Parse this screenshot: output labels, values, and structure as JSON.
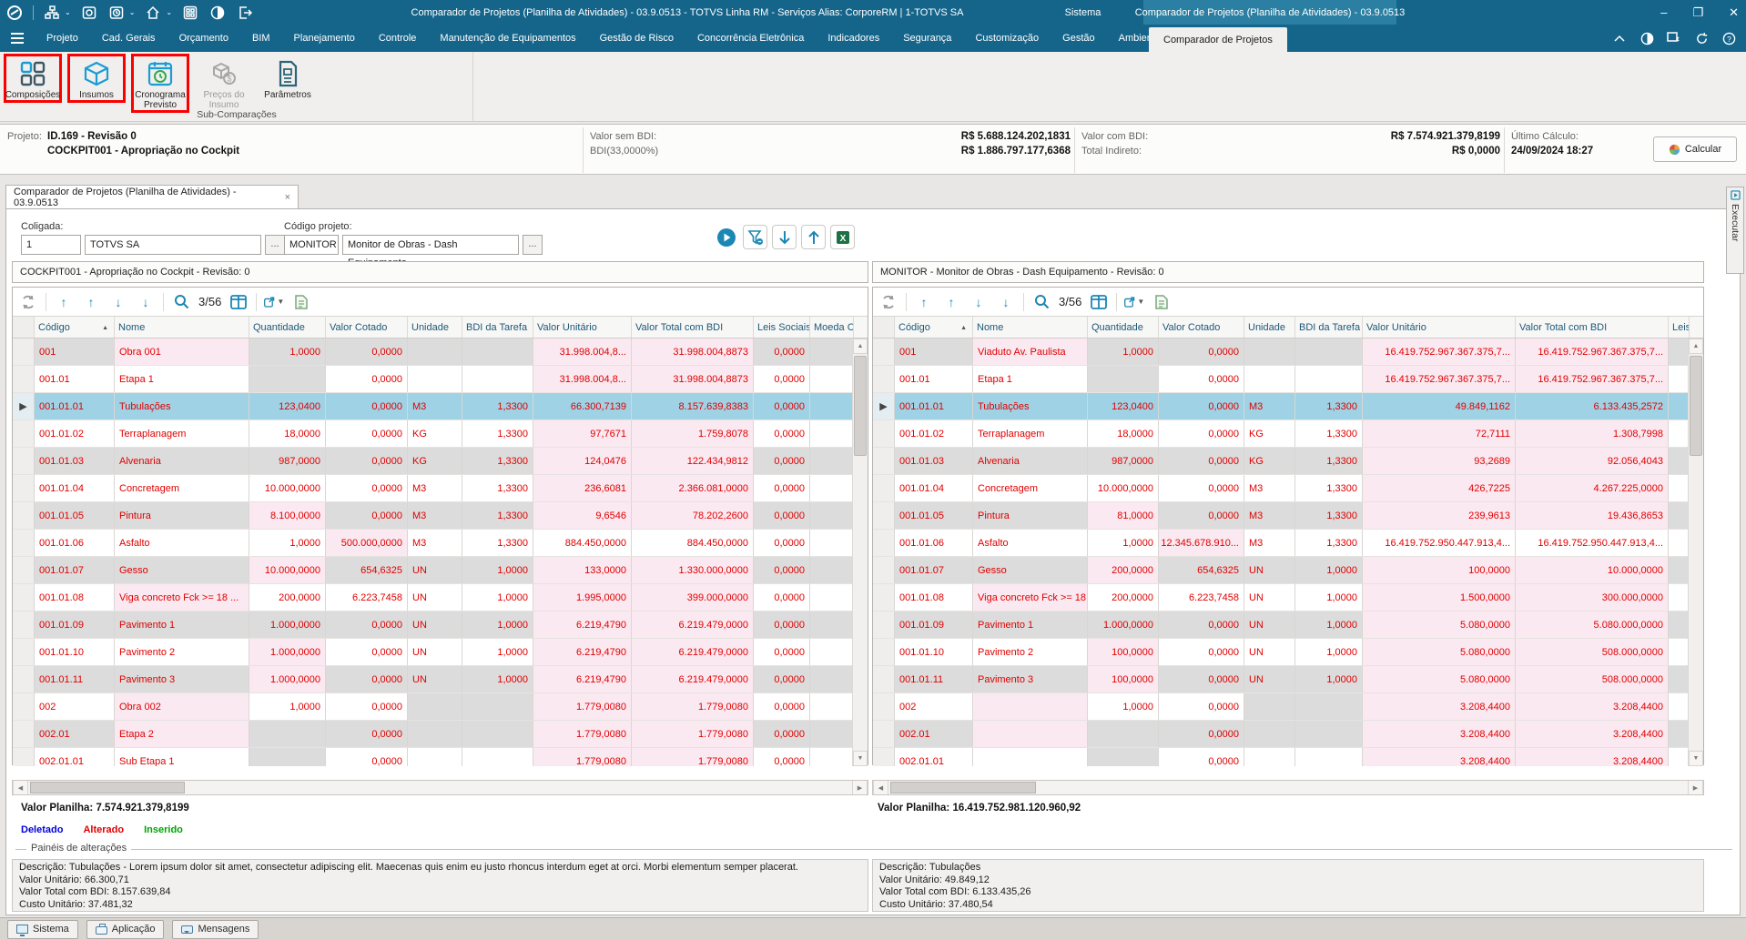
{
  "window": {
    "title": "Comparador de Projetos (Planilha de Atividades) - 03.9.0513 - TOTVS Linha RM - Serviços  Alias: CorporeRM | 1-TOTVS SA",
    "tab_sistema": "Sistema",
    "tab_active": "Comparador de Projetos (Planilha de Atividades) - 03.9.0513",
    "controls": {
      "minimize": "–",
      "maximize": "❐",
      "close": "✕"
    },
    "titlebar_icons": [
      "totvs-logo",
      "workflow-icon",
      "monitor-icon",
      "schedule-icon",
      "home-icon",
      "apps-icon",
      "contrast-icon",
      "exit-icon"
    ]
  },
  "menubar": {
    "items": [
      "Projeto",
      "Cad. Gerais",
      "Orçamento",
      "BIM",
      "Planejamento",
      "Controle",
      "Manutenção de Equipamentos",
      "Gestão de Risco",
      "Concorrência Eletrônica",
      "Indicadores",
      "Segurança",
      "Customização",
      "Gestão",
      "Ambiente"
    ],
    "active_tab": "Comparador de Projetos",
    "right_icons": [
      "collapse-ribbon-icon",
      "contrast-icon",
      "window-switch-icon",
      "refresh-icon",
      "help-icon"
    ]
  },
  "ribbon": {
    "group_label": "Sub-Comparações",
    "buttons": [
      {
        "label": "Composições",
        "icon": "composicoes-icon",
        "enabled": true,
        "highlighted": true
      },
      {
        "label": "Insumos",
        "icon": "insumos-icon",
        "enabled": true,
        "highlighted": true
      },
      {
        "label": "Cronograma Previsto",
        "icon": "cronograma-icon",
        "enabled": true,
        "highlighted": true
      },
      {
        "label": "Preços do Insumo",
        "icon": "precos-insumo-icon",
        "enabled": false,
        "highlighted": false
      },
      {
        "label": "Parâmetros",
        "icon": "parametros-icon",
        "enabled": true,
        "highlighted": false
      }
    ]
  },
  "infobar": {
    "projeto_label": "Projeto:",
    "projeto_line1": "ID.169 - Revisão 0",
    "projeto_line2": "COCKPIT001 - Apropriação no Cockpit",
    "valor_sem_bdi_label": "Valor sem BDI:",
    "valor_sem_bdi": "R$ 5.688.124.202,1831",
    "bdi_label": "BDI(33,0000%)",
    "bdi_valor": "R$ 1.886.797.177,6368",
    "valor_com_bdi_label": "Valor com BDI:",
    "valor_com_bdi": "R$ 7.574.921.379,8199",
    "total_indireto_label": "Total Indireto:",
    "total_indireto": "R$ 0,0000",
    "ultimo_calculo_label": "Último Cálculo:",
    "ultimo_calculo": "24/09/2024 18:27",
    "calcular_label": "Calcular"
  },
  "workspace": {
    "doc_tab": "Comparador de Projetos (Planilha de Atividades) - 03.9.0513",
    "doc_tab_close": "×",
    "coligada_label": "Coligada:",
    "coligada_codigo": "1",
    "coligada_nome": "TOTVS SA",
    "browse_label": "...",
    "codigo_projeto_label": "Código projeto:",
    "projeto_codigo": "MONITOR",
    "projeto_nome": "Monitor de Obras - Dash Equipamento",
    "action_icons": [
      "run-icon",
      "filter-icon",
      "move-down-icon",
      "move-up-icon",
      "excel-export-icon"
    ]
  },
  "grid": {
    "columns": [
      "Código",
      "Nome",
      "Quantidade",
      "Valor Cotado",
      "Unidade",
      "BDI da Tarefa",
      "Valor Unitário",
      "Valor Total com BDI",
      "Leis Sociais",
      "Moeda Cotada"
    ],
    "sorted_column": "Código",
    "toolbar_icons": [
      "refresh-icon",
      "first-row-icon",
      "prev-row-icon",
      "next-row-icon",
      "last-row-icon",
      "search-icon",
      "columns-icon",
      "export-icon",
      "report-icon"
    ],
    "left": {
      "title": "COCKPIT001 - Apropriação no Cockpit - Revisão: 0",
      "pager": "3/56",
      "valor_planilha": "Valor Planilha: 7.574.921.379,8199",
      "rows": [
        {
          "cells": [
            "001",
            "Obra 001",
            "1,0000",
            "0,0000",
            "",
            "",
            "31.998.004,8...",
            "31.998.004,8873",
            "0,0000",
            ""
          ],
          "pink": [
            1,
            6,
            7
          ],
          "gray": [],
          "selected": false
        },
        {
          "cells": [
            "001.01",
            "Etapa 1",
            "",
            "0,0000",
            "",
            "",
            "31.998.004,8...",
            "31.998.004,8873",
            "0,0000",
            ""
          ],
          "pink": [
            6,
            7
          ],
          "gray": [
            2
          ],
          "selected": false
        },
        {
          "cells": [
            "001.01.01",
            "Tubulações",
            "123,0400",
            "0,0000",
            "M3",
            "1,3300",
            "66.300,7139",
            "8.157.639,8383",
            "0,0000",
            ""
          ],
          "pink": [],
          "gray": [],
          "selected": true
        },
        {
          "cells": [
            "001.01.02",
            "Terraplanagem",
            "18,0000",
            "0,0000",
            "KG",
            "1,3300",
            "97,7671",
            "1.759,8078",
            "0,0000",
            ""
          ],
          "pink": [
            6,
            7
          ],
          "gray": [],
          "selected": false
        },
        {
          "cells": [
            "001.01.03",
            "Alvenaria",
            "987,0000",
            "0,0000",
            "KG",
            "1,3300",
            "124,0476",
            "122.434,9812",
            "0,0000",
            ""
          ],
          "pink": [
            6,
            7
          ],
          "gray": [],
          "selected": false
        },
        {
          "cells": [
            "001.01.04",
            "Concretagem",
            "10.000,0000",
            "0,0000",
            "M3",
            "1,3300",
            "236,6081",
            "2.366.081,0000",
            "0,0000",
            ""
          ],
          "pink": [
            6,
            7
          ],
          "gray": [],
          "selected": false
        },
        {
          "cells": [
            "001.01.05",
            "Pintura",
            "8.100,0000",
            "0,0000",
            "M3",
            "1,3300",
            "9,6546",
            "78.202,2600",
            "0,0000",
            ""
          ],
          "pink": [
            2,
            6,
            7
          ],
          "gray": [],
          "selected": false
        },
        {
          "cells": [
            "001.01.06",
            "Asfalto",
            "1,0000",
            "500.000,0000",
            "M3",
            "1,3300",
            "884.450,0000",
            "884.450,0000",
            "0,0000",
            ""
          ],
          "pink": [
            3
          ],
          "gray": [],
          "selected": false
        },
        {
          "cells": [
            "001.01.07",
            "Gesso",
            "10.000,0000",
            "654,6325",
            "UN",
            "1,0000",
            "133,0000",
            "1.330.000,0000",
            "0,0000",
            ""
          ],
          "pink": [
            2,
            6,
            7
          ],
          "gray": [],
          "selected": false
        },
        {
          "cells": [
            "001.01.08",
            "Viga concreto Fck >= 18 ...",
            "200,0000",
            "6.223,7458",
            "UN",
            "1,0000",
            "1.995,0000",
            "399.000,0000",
            "0,0000",
            ""
          ],
          "pink": [
            1,
            6,
            7
          ],
          "gray": [],
          "selected": false
        },
        {
          "cells": [
            "001.01.09",
            "Pavimento 1",
            "1.000,0000",
            "0,0000",
            "UN",
            "1,0000",
            "6.219,4790",
            "6.219.479,0000",
            "0,0000",
            ""
          ],
          "pink": [
            6,
            7
          ],
          "gray": [],
          "selected": false
        },
        {
          "cells": [
            "001.01.10",
            "Pavimento 2",
            "1.000,0000",
            "0,0000",
            "UN",
            "1,0000",
            "6.219,4790",
            "6.219.479,0000",
            "0,0000",
            ""
          ],
          "pink": [
            2,
            6,
            7
          ],
          "gray": [],
          "selected": false
        },
        {
          "cells": [
            "001.01.11",
            "Pavimento 3",
            "1.000,0000",
            "0,0000",
            "UN",
            "1,0000",
            "6.219,4790",
            "6.219.479,0000",
            "0,0000",
            ""
          ],
          "pink": [
            2,
            6,
            7
          ],
          "gray": [],
          "selected": false
        },
        {
          "cells": [
            "002",
            "Obra 002",
            "1,0000",
            "0,0000",
            "",
            "",
            "1.779,0080",
            "1.779,0080",
            "0,0000",
            ""
          ],
          "pink": [
            1,
            6,
            7
          ],
          "gray": [
            4,
            5
          ],
          "selected": false
        },
        {
          "cells": [
            "002.01",
            "Etapa 2",
            "",
            "0,0000",
            "",
            "",
            "1.779,0080",
            "1.779,0080",
            "0,0000",
            ""
          ],
          "pink": [
            1,
            6,
            7
          ],
          "gray": [
            2
          ],
          "selected": false
        },
        {
          "cells": [
            "002.01.01",
            "Sub Etapa 1",
            "",
            "0,0000",
            "",
            "",
            "1.779,0080",
            "1.779,0080",
            "0,0000",
            ""
          ],
          "pink": [
            6,
            7
          ],
          "gray": [
            2
          ],
          "selected": false
        }
      ]
    },
    "right": {
      "title": "MONITOR - Monitor de Obras - Dash Equipamento - Revisão: 0",
      "pager": "3/56",
      "valor_planilha": "Valor Planilha: 16.419.752.981.120.960,92",
      "rows": [
        {
          "cells": [
            "001",
            "Viaduto Av. Paulista",
            "1,0000",
            "0,0000",
            "",
            "",
            "16.419.752.967.367.375,7...",
            "16.419.752.967.367.375,7...",
            "",
            ""
          ],
          "pink": [
            1,
            6,
            7
          ],
          "gray": [],
          "selected": false
        },
        {
          "cells": [
            "001.01",
            "Etapa 1",
            "",
            "0,0000",
            "",
            "",
            "16.419.752.967.367.375,7...",
            "16.419.752.967.367.375,7...",
            "",
            ""
          ],
          "pink": [
            6,
            7
          ],
          "gray": [
            2
          ],
          "selected": false
        },
        {
          "cells": [
            "001.01.01",
            "Tubulações",
            "123,0400",
            "0,0000",
            "M3",
            "1,3300",
            "49.849,1162",
            "6.133.435,2572",
            "",
            ""
          ],
          "pink": [],
          "gray": [],
          "selected": true
        },
        {
          "cells": [
            "001.01.02",
            "Terraplanagem",
            "18,0000",
            "0,0000",
            "KG",
            "1,3300",
            "72,7111",
            "1.308,7998",
            "",
            ""
          ],
          "pink": [
            6,
            7
          ],
          "gray": [],
          "selected": false
        },
        {
          "cells": [
            "001.01.03",
            "Alvenaria",
            "987,0000",
            "0,0000",
            "KG",
            "1,3300",
            "93,2689",
            "92.056,4043",
            "",
            ""
          ],
          "pink": [
            6,
            7
          ],
          "gray": [],
          "selected": false
        },
        {
          "cells": [
            "001.01.04",
            "Concretagem",
            "10.000,0000",
            "0,0000",
            "M3",
            "1,3300",
            "426,7225",
            "4.267.225,0000",
            "",
            ""
          ],
          "pink": [
            6,
            7
          ],
          "gray": [],
          "selected": false
        },
        {
          "cells": [
            "001.01.05",
            "Pintura",
            "81,0000",
            "0,0000",
            "M3",
            "1,3300",
            "239,9613",
            "19.436,8653",
            "",
            ""
          ],
          "pink": [
            2,
            6,
            7
          ],
          "gray": [],
          "selected": false
        },
        {
          "cells": [
            "001.01.06",
            "Asfalto",
            "1,0000",
            "12.345.678.910...",
            "M3",
            "1,3300",
            "16.419.752.950.447.913,4...",
            "16.419.752.950.447.913,4...",
            "",
            ""
          ],
          "pink": [
            3
          ],
          "gray": [],
          "selected": false
        },
        {
          "cells": [
            "001.01.07",
            "Gesso",
            "200,0000",
            "654,6325",
            "UN",
            "1,0000",
            "100,0000",
            "10.000,0000",
            "",
            ""
          ],
          "pink": [
            2,
            6,
            7
          ],
          "gray": [],
          "selected": false
        },
        {
          "cells": [
            "001.01.08",
            "Viga concreto Fck >= 18 ...",
            "200,0000",
            "6.223,7458",
            "UN",
            "1,0000",
            "1.500,0000",
            "300.000,0000",
            "",
            ""
          ],
          "pink": [
            1,
            6,
            7
          ],
          "gray": [],
          "selected": false
        },
        {
          "cells": [
            "001.01.09",
            "Pavimento 1",
            "1.000,0000",
            "0,0000",
            "UN",
            "1,0000",
            "5.080,0000",
            "5.080.000,0000",
            "",
            ""
          ],
          "pink": [
            6,
            7
          ],
          "gray": [],
          "selected": false
        },
        {
          "cells": [
            "001.01.10",
            "Pavimento 2",
            "100,0000",
            "0,0000",
            "UN",
            "1,0000",
            "5.080,0000",
            "508.000,0000",
            "",
            ""
          ],
          "pink": [
            2,
            6,
            7
          ],
          "gray": [],
          "selected": false
        },
        {
          "cells": [
            "001.01.11",
            "Pavimento 3",
            "100,0000",
            "0,0000",
            "UN",
            "1,0000",
            "5.080,0000",
            "508.000,0000",
            "",
            ""
          ],
          "pink": [
            2,
            6,
            7
          ],
          "gray": [],
          "selected": false
        },
        {
          "cells": [
            "002",
            "",
            "1,0000",
            "0,0000",
            "",
            "",
            "3.208,4400",
            "3.208,4400",
            "",
            ""
          ],
          "pink": [
            1,
            6,
            7
          ],
          "gray": [
            4,
            5
          ],
          "selected": false
        },
        {
          "cells": [
            "002.01",
            "",
            "",
            "0,0000",
            "",
            "",
            "3.208,4400",
            "3.208,4400",
            "",
            ""
          ],
          "pink": [
            1,
            6,
            7
          ],
          "gray": [
            2
          ],
          "selected": false
        },
        {
          "cells": [
            "002.01.01",
            "",
            "",
            "0,0000",
            "",
            "",
            "3.208,4400",
            "3.208,4400",
            "",
            ""
          ],
          "pink": [
            6,
            7
          ],
          "gray": [
            2
          ],
          "selected": false
        }
      ]
    }
  },
  "footer": {
    "legend": [
      {
        "label": "Deletado",
        "color": "#0000dd"
      },
      {
        "label": "Alterado",
        "color": "#dd0000"
      },
      {
        "label": "Inserido",
        "color": "#00a500"
      }
    ],
    "group_label": "Painéis de alterações",
    "left_desc": [
      "Descrição: Tubulações - Lorem ipsum dolor sit amet, consectetur adipiscing elit. Maecenas quis enim eu justo rhoncus interdum eget at orci. Morbi elementum semper placerat.",
      "Valor Unitário: 66.300,71",
      "Valor Total com BDI: 8.157.639,84",
      "Custo Unitário: 37.481,32"
    ],
    "right_desc": [
      "Descrição: Tubulações",
      "Valor Unitário: 49.849,12",
      "Valor Total com BDI: 6.133.435,26",
      "Custo Unitário: 37.480,54"
    ]
  },
  "sidetab": {
    "label": "Executar"
  },
  "statusbar": {
    "buttons": [
      {
        "label": "Sistema",
        "icon": "system-icon"
      },
      {
        "label": "Aplicação",
        "icon": "application-icon"
      },
      {
        "label": "Mensagens",
        "icon": "messages-icon"
      }
    ]
  },
  "colors": {
    "titlebar": "#15658b",
    "titlebar_active_tab": "#2a7fa2",
    "accent_teal": "#1b87b4",
    "changed_text": "#e00000",
    "changed_cell_bg": "#fbe9f1",
    "stripe_row_bg": "#dcdcdc",
    "selected_row_bg": "#9fd2e4",
    "highlight_box": "#fb0000"
  }
}
